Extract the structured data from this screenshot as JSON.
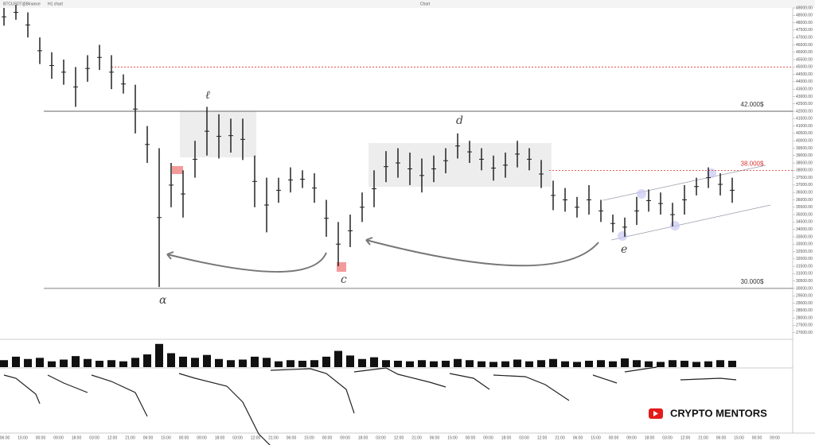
{
  "header": {
    "symbol": "BTCUSDT@Binance",
    "interval": "H1 chart",
    "title": "Chart"
  },
  "watermark": "CRYPTO MENTORS",
  "annotations": {
    "a": "α",
    "b": "ℓ",
    "c": "c",
    "d": "d",
    "e": "e"
  },
  "chart_data": {
    "type": "range-bar",
    "ylim": [
      26660,
      49000
    ],
    "yticks": [
      {
        "value": 49000,
        "label": "49000.00"
      },
      {
        "value": 48500,
        "label": "48500.00"
      },
      {
        "value": 48000,
        "label": "48000.00"
      },
      {
        "value": 47500,
        "label": "47500.00"
      },
      {
        "value": 47000,
        "label": "47000.00"
      },
      {
        "value": 46500,
        "label": "46500.00"
      },
      {
        "value": 46000,
        "label": "46000.00"
      },
      {
        "value": 45500,
        "label": "45500.00"
      },
      {
        "value": 45000,
        "label": "45000.00"
      },
      {
        "value": 44500,
        "label": "44500.00"
      },
      {
        "value": 44000,
        "label": "44000.00"
      },
      {
        "value": 43500,
        "label": "43500.00"
      },
      {
        "value": 43000,
        "label": "43000.00"
      },
      {
        "value": 42500,
        "label": "42500.00"
      },
      {
        "value": 42000,
        "label": "42000.00"
      },
      {
        "value": 41500,
        "label": "41500.00"
      },
      {
        "value": 41000,
        "label": "41000.00"
      },
      {
        "value": 40500,
        "label": "40500.00"
      },
      {
        "value": 40000,
        "label": "40000.00"
      },
      {
        "value": 39500,
        "label": "39500.00"
      },
      {
        "value": 39000,
        "label": "39000.00"
      },
      {
        "value": 38500,
        "label": "38500.00"
      },
      {
        "value": 38000,
        "label": "38000.00"
      },
      {
        "value": 37500,
        "label": "37500.00"
      },
      {
        "value": 37000,
        "label": "37000.00"
      },
      {
        "value": 36500,
        "label": "36500.00"
      },
      {
        "value": 36000,
        "label": "36000.00"
      },
      {
        "value": 35500,
        "label": "35500.00"
      },
      {
        "value": 35000,
        "label": "35000.00"
      },
      {
        "value": 34500,
        "label": "34500.00"
      },
      {
        "value": 34000,
        "label": "34000.00"
      },
      {
        "value": 33500,
        "label": "33500.00"
      },
      {
        "value": 33000,
        "label": "33000.00"
      },
      {
        "value": 32500,
        "label": "32500.00"
      },
      {
        "value": 32000,
        "label": "32000.00"
      },
      {
        "value": 31500,
        "label": "31500.00"
      },
      {
        "value": 31000,
        "label": "31000.00"
      },
      {
        "value": 30500,
        "label": "30500.00"
      },
      {
        "value": 30000,
        "label": "30000.00"
      },
      {
        "value": 29500,
        "label": "29500.00"
      },
      {
        "value": 29000,
        "label": "29000.00"
      },
      {
        "value": 28500,
        "label": "28500.00"
      },
      {
        "value": 28000,
        "label": "28000.00"
      },
      {
        "value": 27500,
        "label": "27500.00"
      },
      {
        "value": 27000,
        "label": "27000.00"
      }
    ],
    "high": [
      49000,
      49200,
      48700,
      47000,
      46000,
      45500,
      45000,
      45800,
      46500,
      45800,
      44500,
      43800,
      41000,
      39500,
      38500,
      38000,
      40000,
      42300,
      41800,
      41500,
      41500,
      39000,
      37500,
      37500,
      38200,
      38000,
      37800,
      36000,
      34500,
      35000,
      36500,
      38000,
      39300,
      39500,
      39200,
      38800,
      39000,
      39500,
      40500,
      40000,
      39500,
      39000,
      39200,
      40000,
      39500,
      38700,
      37300,
      36800,
      36200,
      37000,
      36000,
      35000,
      34800,
      36200,
      36700,
      36500,
      35800,
      37000,
      37500,
      38200,
      37800,
      37500
    ],
    "low": [
      47800,
      48200,
      47000,
      45200,
      44200,
      43800,
      42300,
      44000,
      44800,
      43500,
      43200,
      40500,
      38500,
      30100,
      35500,
      34800,
      37500,
      39000,
      38800,
      39200,
      38700,
      35500,
      33800,
      35800,
      36500,
      36800,
      35800,
      33500,
      31500,
      32800,
      34500,
      35500,
      37200,
      37500,
      37000,
      36500,
      37200,
      37800,
      38800,
      38500,
      38000,
      37300,
      37500,
      38200,
      38000,
      36800,
      35300,
      35200,
      34800,
      35000,
      34500,
      33800,
      33500,
      34300,
      35200,
      35000,
      34200,
      35000,
      36300,
      36800,
      36300,
      35800
    ],
    "color": "#222",
    "levels": [
      {
        "value": 42000,
        "label": "42.000$",
        "color": "#333",
        "dash": false
      },
      {
        "value": 30000,
        "label": "30.000$",
        "color": "#333",
        "dash": false
      },
      {
        "value": 45000,
        "color": "#d33",
        "dash": true
      },
      {
        "value": 38000,
        "label": "38.000$",
        "color": "#d33",
        "dash": true
      }
    ],
    "volume": {
      "ylim": [
        0,
        22595
      ],
      "values": [
        6000,
        9000,
        7000,
        8000,
        5000,
        6500,
        9500,
        7000,
        5500,
        6000,
        5000,
        8000,
        11000,
        20000,
        12000,
        9000,
        8000,
        10500,
        7000,
        6000,
        6500,
        9000,
        8000,
        5000,
        6000,
        5500,
        6000,
        9000,
        14000,
        10000,
        7000,
        8500,
        6000,
        5500,
        5000,
        6000,
        5000,
        5500,
        7000,
        6000,
        5000,
        4500,
        5000,
        6500,
        5000,
        6000,
        7000,
        5000,
        4500,
        5500,
        6000,
        5000,
        7500,
        6000,
        5000,
        4500,
        6000,
        5500,
        4500,
        5000,
        6000,
        5500
      ]
    },
    "xlabels": [
      "06:00",
      "15:00",
      "00:00",
      "09:00",
      "18:00",
      "03:00",
      "12:00",
      "21:00",
      "06:00",
      "15:00",
      "00:00",
      "09:00",
      "18:00",
      "03:00",
      "12:00",
      "21:00",
      "06:00",
      "15:00",
      "00:00",
      "09:00",
      "18:00",
      "03:00",
      "12:00",
      "21:00",
      "06:00",
      "15:00",
      "00:00",
      "09:00",
      "18:00",
      "03:00",
      "12:00",
      "21:00",
      "06:00",
      "15:00",
      "00:00",
      "09:00",
      "18:00",
      "03:00",
      "12:00",
      "21:00",
      "06:00",
      "15:00",
      "00:00",
      "09:00"
    ]
  }
}
